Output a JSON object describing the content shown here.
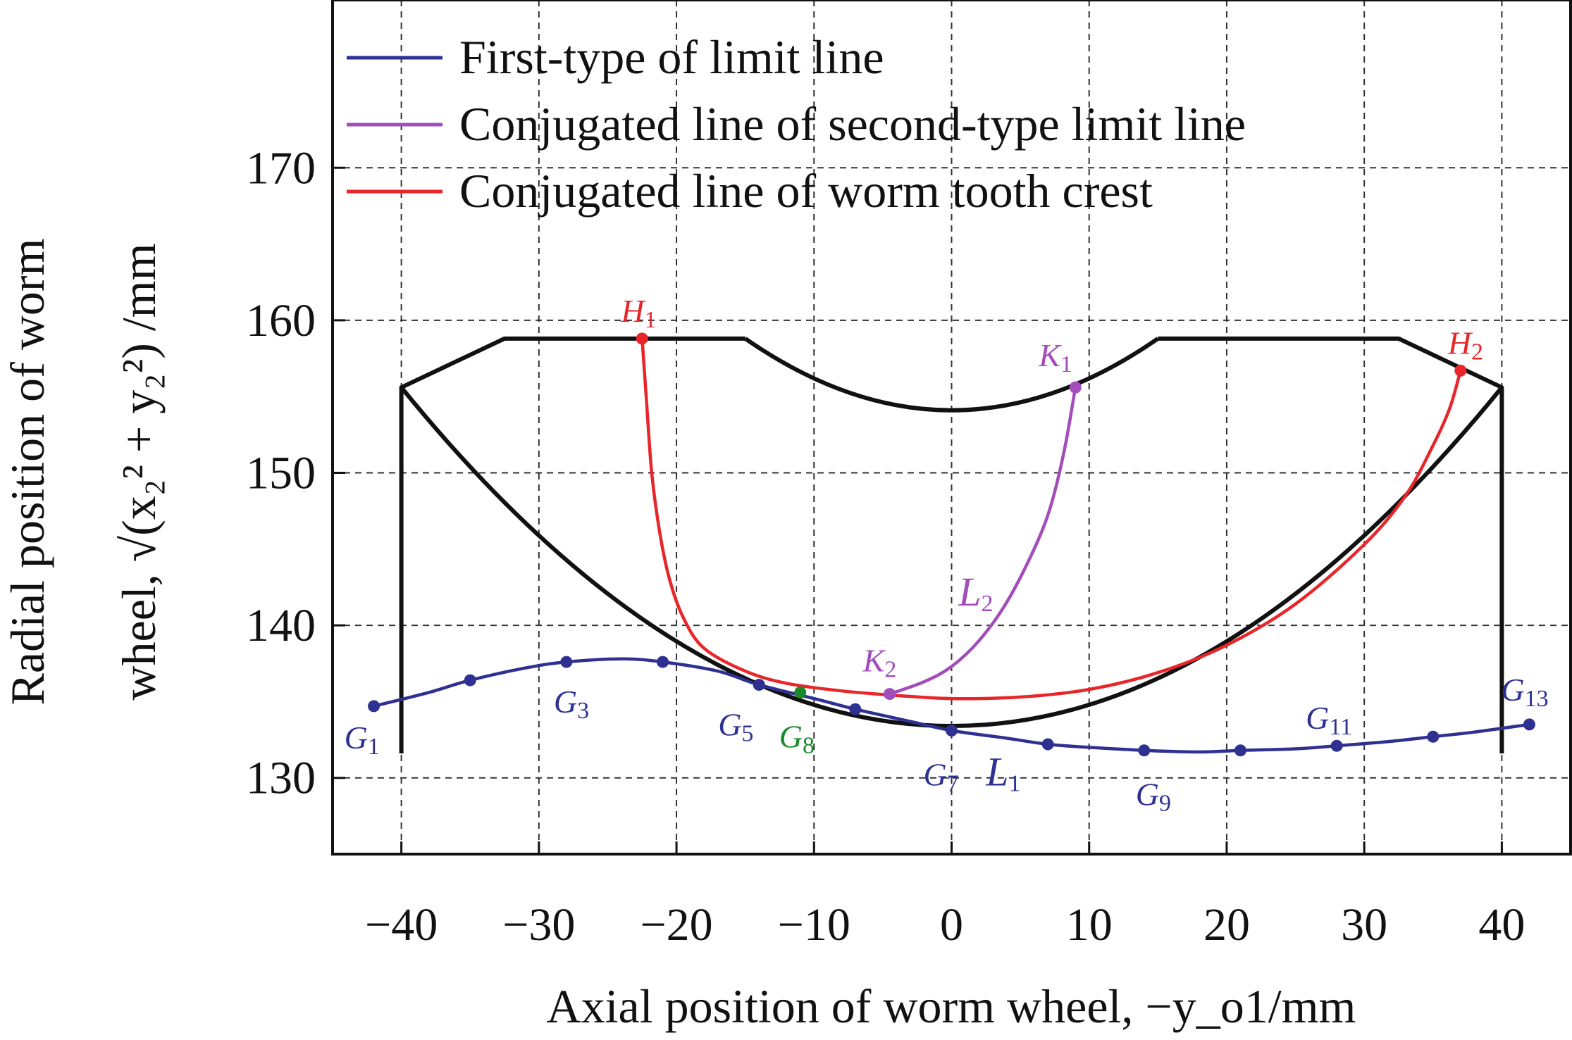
{
  "chart_data": {
    "type": "line",
    "xlabel": "Axial position of worm wheel, −y_o1/mm",
    "ylabel_line1": "Radial position of worm",
    "ylabel_line2": "wheel, √(x₂² + y₂²) /mm",
    "xlim": [
      -45,
      45
    ],
    "ylim": [
      125,
      181
    ],
    "x_ticks": [
      -40,
      -30,
      -20,
      -10,
      0,
      10,
      20,
      30,
      40
    ],
    "y_ticks": [
      130,
      140,
      150,
      160,
      170
    ],
    "x_tick_labels": [
      "−40",
      "−30",
      "−20",
      "−10",
      "0",
      "10",
      "20",
      "30",
      "40"
    ],
    "y_tick_labels": [
      "130",
      "140",
      "150",
      "160",
      "170"
    ],
    "grid": true,
    "legend_position": "top",
    "colors": {
      "first_type": "#2e3192",
      "second_type": "#a24dbb",
      "tooth_crest": "#e8262a",
      "boundary": "#111111",
      "g8": "#1a8a2a"
    },
    "legend": [
      {
        "key": "first_type",
        "label": "First-type of limit line"
      },
      {
        "key": "second_type",
        "label": "Conjugated line of second-type limit line"
      },
      {
        "key": "tooth_crest",
        "label": "Conjugated line of worm tooth crest"
      }
    ],
    "series": [
      {
        "key": "first_type",
        "name": "First-type of limit line",
        "line_label": {
          "text": "L",
          "sub": "1",
          "x": 2.5,
          "y": 129.5
        },
        "points": [
          {
            "label": "G",
            "sub": "1",
            "x": -42,
            "y": 134.7
          },
          {
            "label": "",
            "sub": "",
            "x": -35,
            "y": 136.4
          },
          {
            "label": "G",
            "sub": "3",
            "x": -28,
            "y": 137.6
          },
          {
            "label": "",
            "sub": "",
            "x": -21,
            "y": 137.6
          },
          {
            "label": "G",
            "sub": "5",
            "x": -14,
            "y": 136.1
          },
          {
            "label": "",
            "sub": "",
            "x": -7,
            "y": 134.5
          },
          {
            "label": "G",
            "sub": "7",
            "x": 0,
            "y": 133.1
          },
          {
            "label": "",
            "sub": "",
            "x": 7,
            "y": 132.2
          },
          {
            "label": "G",
            "sub": "9",
            "x": 14,
            "y": 131.8
          },
          {
            "label": "",
            "sub": "",
            "x": 21,
            "y": 131.8
          },
          {
            "label": "G",
            "sub": "11",
            "x": 28,
            "y": 132.1
          },
          {
            "label": "",
            "sub": "",
            "x": 35,
            "y": 132.7
          },
          {
            "label": "G",
            "sub": "13",
            "x": 42,
            "y": 133.5
          }
        ],
        "curve": [
          [
            -42,
            134.7
          ],
          [
            -38,
            135.6
          ],
          [
            -35,
            136.4
          ],
          [
            -31,
            137.2
          ],
          [
            -28,
            137.6
          ],
          [
            -24,
            137.8
          ],
          [
            -21,
            137.6
          ],
          [
            -17,
            137.0
          ],
          [
            -14,
            136.1
          ],
          [
            -10,
            135.2
          ],
          [
            -7,
            134.5
          ],
          [
            -3,
            133.7
          ],
          [
            0,
            133.1
          ],
          [
            4,
            132.6
          ],
          [
            7,
            132.2
          ],
          [
            10,
            132.0
          ],
          [
            14,
            131.8
          ],
          [
            18,
            131.7
          ],
          [
            21,
            131.8
          ],
          [
            25,
            131.9
          ],
          [
            28,
            132.1
          ],
          [
            32,
            132.4
          ],
          [
            35,
            132.7
          ],
          [
            38,
            133.0
          ],
          [
            42,
            133.5
          ]
        ]
      },
      {
        "key": "second_type",
        "name": "Conjugated line of second-type limit line",
        "line_label": {
          "text": "L",
          "sub": "2",
          "x": 0.5,
          "y": 141.3
        },
        "points": [
          {
            "label": "K",
            "sub": "1",
            "x": 9,
            "y": 155.6
          },
          {
            "label": "K",
            "sub": "2",
            "x": -4.5,
            "y": 135.5
          }
        ],
        "curve": [
          [
            -4.5,
            135.5
          ],
          [
            -2,
            136.3
          ],
          [
            0,
            137.3
          ],
          [
            2,
            139
          ],
          [
            4,
            141.5
          ],
          [
            6,
            145.0
          ],
          [
            7.2,
            147.8
          ],
          [
            8.2,
            151.5
          ],
          [
            9,
            155.6
          ]
        ]
      },
      {
        "key": "tooth_crest",
        "name": "Conjugated line of worm tooth crest",
        "points": [
          {
            "label": "H",
            "sub": "1",
            "x": -22.5,
            "y": 158.8
          },
          {
            "label": "H",
            "sub": "2",
            "x": 37,
            "y": 156.7
          }
        ],
        "curve": [
          [
            -22.5,
            158.8
          ],
          [
            -22.2,
            155
          ],
          [
            -21.8,
            150
          ],
          [
            -21.2,
            146
          ],
          [
            -20.5,
            143
          ],
          [
            -19.5,
            140.5
          ],
          [
            -18,
            138.5
          ],
          [
            -15,
            137
          ],
          [
            -12,
            136.2
          ],
          [
            -8,
            135.7
          ],
          [
            -4,
            135.4
          ],
          [
            0,
            135.2
          ],
          [
            5,
            135.3
          ],
          [
            10,
            135.8
          ],
          [
            15,
            136.9
          ],
          [
            20,
            138.7
          ],
          [
            25,
            141.4
          ],
          [
            30,
            145.3
          ],
          [
            33,
            148.5
          ],
          [
            35,
            151.8
          ],
          [
            36.2,
            154.2
          ],
          [
            37,
            156.7
          ]
        ]
      }
    ],
    "extra_points": [
      {
        "label": "G",
        "sub": "8",
        "x": -11,
        "y": 135.6,
        "color_key": "g8"
      }
    ],
    "boundary": {
      "outer": [
        [
          -40,
          131.6
        ],
        [
          -40,
          155.6
        ],
        [
          -32.5,
          158.8
        ],
        [
          -15,
          158.8
        ]
      ],
      "outer_right": [
        [
          15,
          158.8
        ],
        [
          32.5,
          158.8
        ],
        [
          40,
          155.6
        ],
        [
          40,
          131.6
        ]
      ],
      "inner_arc": {
        "from": [
          -15,
          158.8
        ],
        "through": [
          0,
          154.1
        ],
        "to": [
          15,
          158.8
        ]
      },
      "bottom_arc": {
        "from": [
          -40,
          155.6
        ],
        "through": [
          0,
          133.4
        ],
        "to": [
          40,
          155.6
        ]
      }
    }
  }
}
